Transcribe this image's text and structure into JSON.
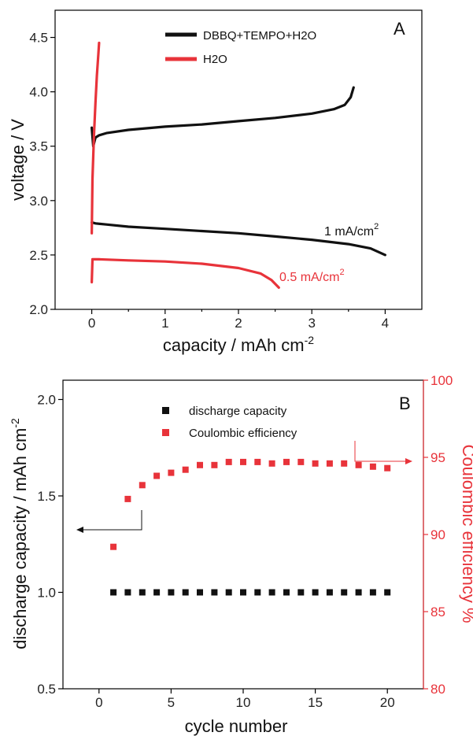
{
  "colors": {
    "black": "#111111",
    "red": "#e8333a"
  },
  "chart_data": [
    {
      "type": "line",
      "panel_label": "A",
      "xlabel": "capacity / mAh cm",
      "xlabel_sup": "-2",
      "ylabel": "voltage / V",
      "xlim": [
        -0.5,
        4.5
      ],
      "ylim": [
        2.0,
        4.75
      ],
      "xticks": [
        "0",
        "1",
        "2",
        "3",
        "4"
      ],
      "yticks": [
        "2.0",
        "2.5",
        "3.0",
        "3.5",
        "4.0",
        "4.5"
      ],
      "legend": [
        {
          "label": "DBBQ+TEMPO+H2O",
          "color": "#111111"
        },
        {
          "label": "H2O",
          "color": "#e8333a"
        }
      ],
      "annotations": [
        {
          "text": "1 mA/cm",
          "sup": "2",
          "color": "#111111"
        },
        {
          "text": "0.5 mA/cm",
          "sup": "2",
          "color": "#e8333a"
        }
      ],
      "series": [
        {
          "name": "DBBQ+TEMPO+H2O",
          "color": "#111111",
          "segments": [
            {
              "x": [
                0,
                0.02,
                0.05,
                0.1,
                0.2,
                0.5,
                1.0,
                1.5,
                2.0,
                2.5,
                3.0,
                3.3,
                3.45,
                3.53,
                3.57
              ],
              "y": [
                3.67,
                3.5,
                3.58,
                3.6,
                3.62,
                3.65,
                3.68,
                3.7,
                3.73,
                3.76,
                3.8,
                3.84,
                3.88,
                3.95,
                4.04
              ]
            },
            {
              "x": [
                0,
                0.05,
                0.2,
                0.5,
                1.0,
                1.5,
                2.0,
                2.5,
                3.0,
                3.5,
                3.8,
                4.0
              ],
              "y": [
                2.8,
                2.79,
                2.78,
                2.76,
                2.74,
                2.72,
                2.7,
                2.67,
                2.64,
                2.6,
                2.56,
                2.5
              ]
            }
          ]
        },
        {
          "name": "H2O",
          "color": "#e8333a",
          "segments": [
            {
              "x": [
                0,
                0.01,
                0.03,
                0.05,
                0.07,
                0.09,
                0.1
              ],
              "y": [
                2.7,
                3.2,
                3.6,
                3.9,
                4.15,
                4.35,
                4.45
              ]
            },
            {
              "x": [
                0,
                0.01,
                0.1,
                0.5,
                1.0,
                1.5,
                2.0,
                2.3,
                2.45,
                2.55
              ],
              "y": [
                2.25,
                2.46,
                2.46,
                2.45,
                2.44,
                2.42,
                2.38,
                2.33,
                2.27,
                2.2
              ]
            }
          ]
        }
      ]
    },
    {
      "type": "scatter",
      "panel_label": "B",
      "xlabel": "cycle number",
      "ylabel_left": "discharge capacity / mAh cm",
      "ylabel_left_sup": "-2",
      "ylabel_right": "Coulombic efficiency %",
      "xlim": [
        -2.5,
        22.5
      ],
      "ylim_left": [
        0.5,
        2.1
      ],
      "ylim_right": [
        80,
        100
      ],
      "xticks": [
        "0",
        "5",
        "10",
        "15",
        "20"
      ],
      "yticks_left": [
        "0.5",
        "1.0",
        "1.5",
        "2.0"
      ],
      "yticks_right": [
        "80",
        "85",
        "90",
        "95",
        "100"
      ],
      "legend": [
        {
          "label": "discharge capacity",
          "color": "#111111"
        },
        {
          "label": "Coulombic efficiency",
          "color": "#e8333a"
        }
      ],
      "series": [
        {
          "name": "discharge capacity",
          "axis": "left",
          "color": "#111111",
          "x": [
            1,
            2,
            3,
            4,
            5,
            6,
            7,
            8,
            9,
            10,
            11,
            12,
            13,
            14,
            15,
            16,
            17,
            18,
            19,
            20
          ],
          "y": [
            1.0,
            1.0,
            1.0,
            1.0,
            1.0,
            1.0,
            1.0,
            1.0,
            1.0,
            1.0,
            1.0,
            1.0,
            1.0,
            1.0,
            1.0,
            1.0,
            1.0,
            1.0,
            1.0,
            1.0
          ]
        },
        {
          "name": "Coulombic efficiency",
          "axis": "right",
          "color": "#e8333a",
          "x": [
            1,
            2,
            3,
            4,
            5,
            6,
            7,
            8,
            9,
            10,
            11,
            12,
            13,
            14,
            15,
            16,
            17,
            18,
            19,
            20
          ],
          "y": [
            89.2,
            92.3,
            93.2,
            93.8,
            94.0,
            94.2,
            94.5,
            94.5,
            94.7,
            94.7,
            94.7,
            94.6,
            94.7,
            94.7,
            94.6,
            94.6,
            94.6,
            94.5,
            94.4,
            94.3
          ]
        }
      ]
    }
  ]
}
